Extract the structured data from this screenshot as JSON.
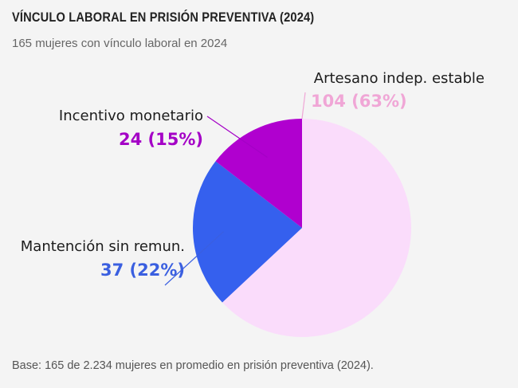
{
  "header": {
    "title": "VÍNCULO LABORAL EN PRISIÓN PREVENTIVA (2024)",
    "subtitle": "165 mujeres con vínculo laboral en 2024"
  },
  "footer": {
    "note": "Base: 165 de 2.234 mujeres en promedio en prisión preventiva (2024)."
  },
  "chart_data": {
    "type": "pie",
    "title": "VÍNCULO LABORAL EN PRISIÓN PREVENTIVA (2024)",
    "total": 165,
    "slices": [
      {
        "name": "Artesano indep. estable",
        "value": 104,
        "value_label": "104 (63%)",
        "color": "#fadcfb",
        "label_color": "#f0a6d6"
      },
      {
        "name": "Mantención sin remun.",
        "value": 37,
        "value_label": "37 (22%)",
        "color": "#3560ee",
        "label_color": "#3a5fe0"
      },
      {
        "name": "Incentivo monetario",
        "value": 24,
        "value_label": "24 (15%)",
        "color": "#b000cf",
        "label_color": "#a400c6"
      }
    ]
  }
}
